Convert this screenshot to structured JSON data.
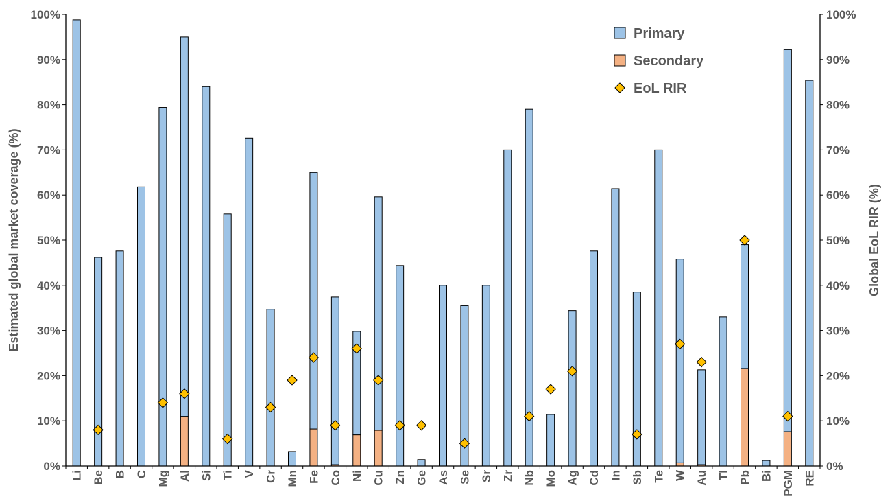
{
  "chart_data": {
    "type": "bar",
    "stacked": true,
    "categories": [
      "Li",
      "Be",
      "B",
      "C",
      "Mg",
      "Al",
      "Si",
      "Ti",
      "V",
      "Cr",
      "Mn",
      "Fe",
      "Co",
      "Ni",
      "Cu",
      "Zn",
      "Ge",
      "As",
      "Se",
      "Sr",
      "Zr",
      "Nb",
      "Mo",
      "Ag",
      "Cd",
      "In",
      "Sb",
      "Te",
      "W",
      "Au",
      "Tl",
      "Pb",
      "Bi",
      "PGM",
      "RE"
    ],
    "series": [
      {
        "name": "Secondary",
        "kind": "bar",
        "axis": "left",
        "color": "#F4B183",
        "values": [
          0,
          0,
          0,
          0,
          0,
          11,
          0,
          0,
          0,
          0,
          0,
          8.2,
          0.3,
          6.9,
          7.9,
          0,
          0,
          0,
          0,
          0,
          0,
          0,
          0,
          0,
          0,
          0,
          0,
          0,
          0.7,
          0.3,
          0,
          21.6,
          0,
          7.6,
          0
        ]
      },
      {
        "name": "Primary",
        "kind": "bar",
        "axis": "left",
        "color": "#9DC3E6",
        "values": [
          98.8,
          46.2,
          47.6,
          61.8,
          79.4,
          84.0,
          84.0,
          55.8,
          72.6,
          34.7,
          3.2,
          56.8,
          37.1,
          22.9,
          51.7,
          44.4,
          1.4,
          40.0,
          35.5,
          40.0,
          70.0,
          79.0,
          11.4,
          34.4,
          47.6,
          61.4,
          38.5,
          70.0,
          45.1,
          21.0,
          33.0,
          27.4,
          1.2,
          84.6,
          85.4
        ]
      },
      {
        "name": "EoL RIR",
        "kind": "marker",
        "axis": "right",
        "color": "#FFC000",
        "values": [
          null,
          8,
          null,
          null,
          14,
          16,
          null,
          6,
          null,
          13,
          19,
          24,
          9,
          26,
          19,
          9,
          9,
          null,
          5,
          null,
          null,
          11,
          17,
          21,
          null,
          null,
          7,
          null,
          27,
          23,
          null,
          50,
          null,
          11,
          null
        ]
      }
    ],
    "ylabel": "Estimated global market coverage (%)",
    "y2label": "Global EoL RIR (%)",
    "ylim": [
      0,
      100
    ],
    "y2lim": [
      0,
      100
    ],
    "yticks": [
      "0%",
      "10%",
      "20%",
      "30%",
      "40%",
      "50%",
      "60%",
      "70%",
      "80%",
      "90%",
      "100%"
    ],
    "legend": {
      "position": "top-right",
      "entries": [
        "Primary",
        "Secondary",
        "EoL RIR"
      ]
    },
    "grid": false
  }
}
